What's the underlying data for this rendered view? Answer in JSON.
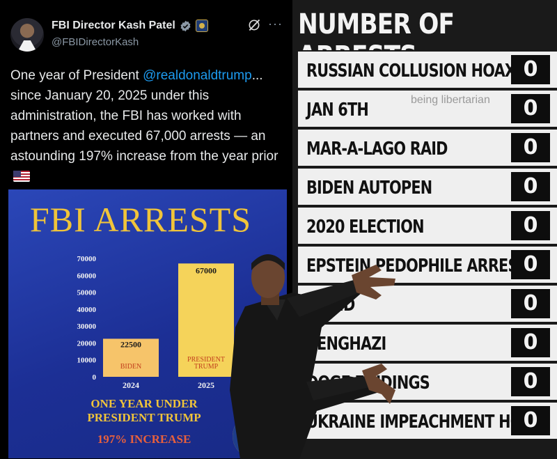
{
  "tweet": {
    "display_name": "FBI Director Kash Patel",
    "handle": "@FBIDirectorKash",
    "body_before_mention": "One year of President ",
    "mention": "@realdonaldtrump",
    "body_after_mention": "... since January 20, 2025 under this administration, the FBI has worked with partners and executed 67,000 arrests — an astounding 197% increase from the year prior",
    "icons": [
      "verified-badge-icon",
      "government-badge-icon",
      "grok-icon",
      "more-icon",
      "us-flag-icon"
    ]
  },
  "poster": {
    "title": "FBI ARRESTS",
    "caption_line1": "ONE YEAR UNDER",
    "caption_line2": "PRESIDENT TRUMP",
    "increase": "197% INCREASE",
    "colors": {
      "background": "#1f3399",
      "title": "#f0c43a",
      "bar": "#f5d35a",
      "increase": "#e8603c"
    }
  },
  "chart_data": {
    "type": "bar",
    "title": "FBI ARRESTS",
    "categories": [
      "2024",
      "2025"
    ],
    "series": [
      {
        "values": [
          22500,
          67000
        ]
      }
    ],
    "bar_labels": [
      "BIDEN",
      "PRESIDENT TRUMP"
    ],
    "data_labels": [
      "22500",
      "67000"
    ],
    "yticks": [
      0,
      10000,
      20000,
      30000,
      40000,
      50000,
      60000,
      70000
    ],
    "ylim": [
      0,
      70000
    ],
    "grid": false
  },
  "board": {
    "title": "NUMBER OF ARRESTS",
    "watermark": "being libertarian",
    "rows": [
      {
        "label": "RUSSIAN COLLUSION HOAX",
        "value": "0"
      },
      {
        "label": "JAN 6TH",
        "value": "0"
      },
      {
        "label": "MAR-A-LAGO RAID",
        "value": "0"
      },
      {
        "label": "BIDEN AUTOPEN",
        "value": "0"
      },
      {
        "label": "2020 ELECTION",
        "value": "0"
      },
      {
        "label": "EPSTEIN PEDOPHILE ARRESTS",
        "value": "0"
      },
      {
        "label": "COVID",
        "value": "0"
      },
      {
        "label": "BENGHAZI",
        "value": "0"
      },
      {
        "label": "DOGE FINDINGS",
        "value": "0"
      },
      {
        "label": "UKRAINE IMPEACHMENT HOAX",
        "value": "0"
      }
    ]
  }
}
